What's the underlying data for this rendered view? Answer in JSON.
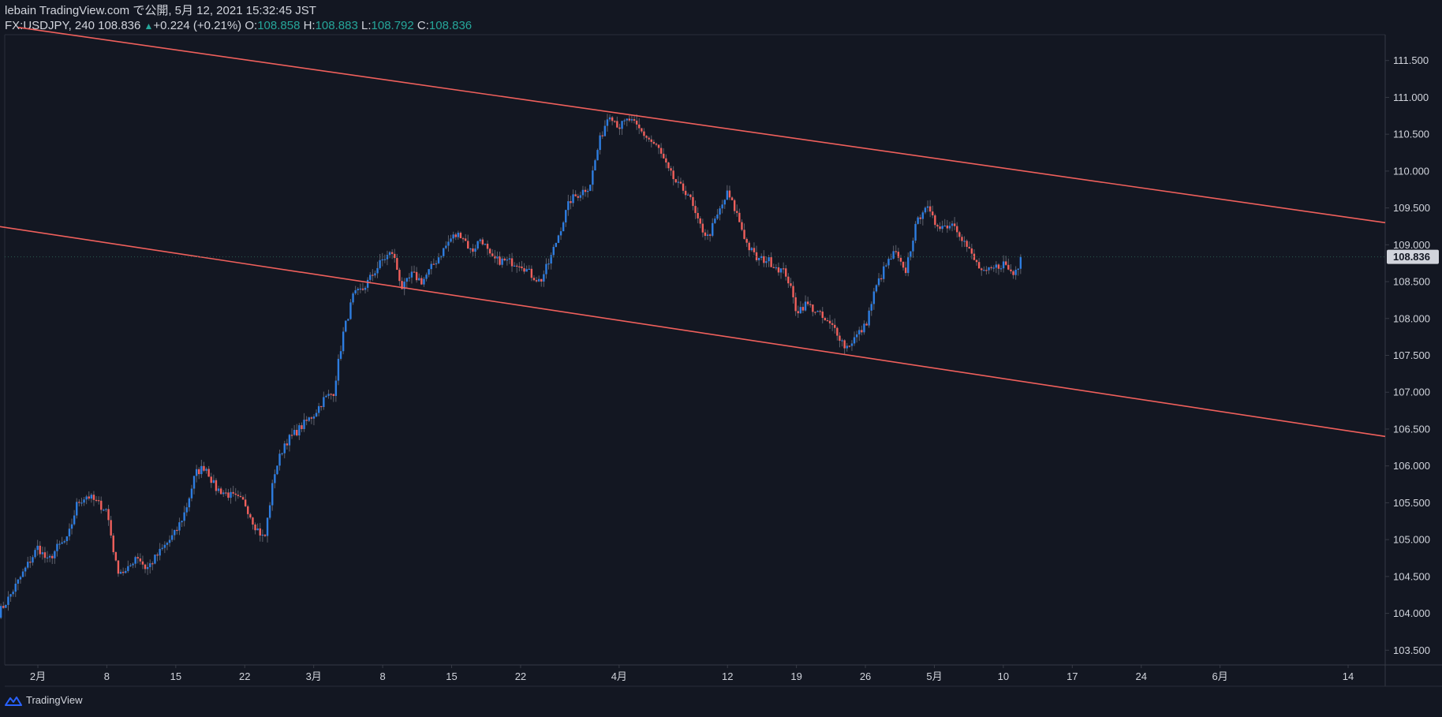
{
  "header": {
    "publish_line": "lebain TradingView.com で公開, 5月 12, 2021 15:32:45 JST",
    "symbol": "FX:USDJPY, 240",
    "last": "108.836",
    "change": "+0.224 (+0.21%)",
    "o_label": "O:",
    "o_value": "108.858",
    "h_label": "H:",
    "h_value": "108.883",
    "l_label": "L:",
    "l_value": "108.792",
    "c_label": "C:",
    "c_value": "108.836"
  },
  "footer": {
    "brand": "TradingView"
  },
  "colors": {
    "background": "#131722",
    "up": "#2e7de0",
    "down": "#f0605c",
    "trendline": "#f0605c",
    "axis_text": "#d1d4dc",
    "price_tag": "#d1d4dc"
  },
  "chart_data": {
    "type": "candlestick",
    "symbol": "FX:USDJPY",
    "interval": "240",
    "ylim": [
      103.3,
      111.85
    ],
    "y_ticks": [
      "111.500",
      "111.000",
      "110.500",
      "110.000",
      "109.500",
      "109.000",
      "108.500",
      "108.000",
      "107.500",
      "107.000",
      "106.500",
      "106.000",
      "105.500",
      "105.000",
      "104.500",
      "104.000",
      "103.500"
    ],
    "current_price": "108.836",
    "x_ticks": [
      {
        "label": "2月",
        "date": "2021-02-01"
      },
      {
        "label": "8",
        "date": "2021-02-08"
      },
      {
        "label": "15",
        "date": "2021-02-15"
      },
      {
        "label": "22",
        "date": "2021-02-22"
      },
      {
        "label": "3月",
        "date": "2021-03-01"
      },
      {
        "label": "8",
        "date": "2021-03-08"
      },
      {
        "label": "15",
        "date": "2021-03-15"
      },
      {
        "label": "22",
        "date": "2021-03-22"
      },
      {
        "label": "4月",
        "date": "2021-04-01"
      },
      {
        "label": "12",
        "date": "2021-04-12"
      },
      {
        "label": "19",
        "date": "2021-04-19"
      },
      {
        "label": "26",
        "date": "2021-04-26"
      },
      {
        "label": "5月",
        "date": "2021-05-03"
      },
      {
        "label": "10",
        "date": "2021-05-10"
      },
      {
        "label": "17",
        "date": "2021-05-17"
      },
      {
        "label": "24",
        "date": "2021-05-24"
      },
      {
        "label": "6月",
        "date": "2021-06-01"
      },
      {
        "label": "14",
        "date": "2021-06-14"
      }
    ],
    "price_path": [
      {
        "date": "2021-01-28",
        "price": 104.0
      },
      {
        "date": "2021-01-29",
        "price": 104.2
      },
      {
        "date": "2021-02-01",
        "price": 104.9
      },
      {
        "date": "2021-02-02",
        "price": 104.7
      },
      {
        "date": "2021-02-03",
        "price": 104.9
      },
      {
        "date": "2021-02-04",
        "price": 105.0
      },
      {
        "date": "2021-02-05",
        "price": 105.5
      },
      {
        "date": "2021-02-06",
        "price": 105.6
      },
      {
        "date": "2021-02-08",
        "price": 105.4
      },
      {
        "date": "2021-02-09",
        "price": 104.6
      },
      {
        "date": "2021-02-10",
        "price": 104.55
      },
      {
        "date": "2021-02-11",
        "price": 104.8
      },
      {
        "date": "2021-02-12",
        "price": 104.6
      },
      {
        "date": "2021-02-15",
        "price": 105.1
      },
      {
        "date": "2021-02-16",
        "price": 105.4
      },
      {
        "date": "2021-02-17",
        "price": 105.9
      },
      {
        "date": "2021-02-18",
        "price": 106.0
      },
      {
        "date": "2021-02-19",
        "price": 105.7
      },
      {
        "date": "2021-02-22",
        "price": 105.5
      },
      {
        "date": "2021-02-23",
        "price": 105.2
      },
      {
        "date": "2021-02-24",
        "price": 105.0
      },
      {
        "date": "2021-02-25",
        "price": 105.9
      },
      {
        "date": "2021-02-26",
        "price": 106.3
      },
      {
        "date": "2021-03-01",
        "price": 106.7
      },
      {
        "date": "2021-03-02",
        "price": 106.9
      },
      {
        "date": "2021-03-03",
        "price": 107.0
      },
      {
        "date": "2021-03-04",
        "price": 107.8
      },
      {
        "date": "2021-03-05",
        "price": 108.3
      },
      {
        "date": "2021-03-06",
        "price": 108.4
      },
      {
        "date": "2021-03-08",
        "price": 108.8
      },
      {
        "date": "2021-03-09",
        "price": 108.9
      },
      {
        "date": "2021-03-10",
        "price": 108.4
      },
      {
        "date": "2021-03-11",
        "price": 108.6
      },
      {
        "date": "2021-03-12",
        "price": 108.5
      },
      {
        "date": "2021-03-15",
        "price": 109.1
      },
      {
        "date": "2021-03-16",
        "price": 109.15
      },
      {
        "date": "2021-03-17",
        "price": 108.9
      },
      {
        "date": "2021-03-18",
        "price": 109.1
      },
      {
        "date": "2021-03-19",
        "price": 108.8
      },
      {
        "date": "2021-03-22",
        "price": 108.75
      },
      {
        "date": "2021-03-23",
        "price": 108.6
      },
      {
        "date": "2021-03-24",
        "price": 108.5
      },
      {
        "date": "2021-03-25",
        "price": 108.8
      },
      {
        "date": "2021-03-26",
        "price": 109.2
      },
      {
        "date": "2021-03-27",
        "price": 109.6
      },
      {
        "date": "2021-03-29",
        "price": 109.8
      },
      {
        "date": "2021-03-30",
        "price": 110.4
      },
      {
        "date": "2021-03-31",
        "price": 110.8
      },
      {
        "date": "2021-04-01",
        "price": 110.6
      },
      {
        "date": "2021-04-02",
        "price": 110.7
      },
      {
        "date": "2021-04-05",
        "price": 110.3
      },
      {
        "date": "2021-04-06",
        "price": 110.0
      },
      {
        "date": "2021-04-07",
        "price": 109.8
      },
      {
        "date": "2021-04-08",
        "price": 109.7
      },
      {
        "date": "2021-04-09",
        "price": 109.3
      },
      {
        "date": "2021-04-10",
        "price": 109.1
      },
      {
        "date": "2021-04-12",
        "price": 109.7
      },
      {
        "date": "2021-04-13",
        "price": 109.4
      },
      {
        "date": "2021-04-14",
        "price": 109.0
      },
      {
        "date": "2021-04-15",
        "price": 108.8
      },
      {
        "date": "2021-04-16",
        "price": 108.8
      },
      {
        "date": "2021-04-18",
        "price": 108.6
      },
      {
        "date": "2021-04-19",
        "price": 108.1
      },
      {
        "date": "2021-04-20",
        "price": 108.2
      },
      {
        "date": "2021-04-21",
        "price": 108.1
      },
      {
        "date": "2021-04-22",
        "price": 107.95
      },
      {
        "date": "2021-04-23",
        "price": 107.85
      },
      {
        "date": "2021-04-24",
        "price": 107.6
      },
      {
        "date": "2021-04-26",
        "price": 107.9
      },
      {
        "date": "2021-04-27",
        "price": 108.4
      },
      {
        "date": "2021-04-28",
        "price": 108.7
      },
      {
        "date": "2021-04-29",
        "price": 108.9
      },
      {
        "date": "2021-04-30",
        "price": 108.6
      },
      {
        "date": "2021-05-01",
        "price": 109.2
      },
      {
        "date": "2021-05-02",
        "price": 109.55
      },
      {
        "date": "2021-05-03",
        "price": 109.3
      },
      {
        "date": "2021-05-04",
        "price": 109.25
      },
      {
        "date": "2021-05-05",
        "price": 109.3
      },
      {
        "date": "2021-05-06",
        "price": 109.05
      },
      {
        "date": "2021-05-07",
        "price": 108.8
      },
      {
        "date": "2021-05-08",
        "price": 108.6
      },
      {
        "date": "2021-05-10",
        "price": 108.75
      },
      {
        "date": "2021-05-11",
        "price": 108.6
      },
      {
        "date": "2021-05-12",
        "price": 108.836
      }
    ],
    "trendlines": [
      {
        "name": "upper",
        "start": {
          "date": "2021-01-30",
          "price": 111.95
        },
        "end": {
          "date": "2021-06-20",
          "price": 109.3
        }
      },
      {
        "name": "lower",
        "start": {
          "date": "2021-01-28",
          "price": 109.25
        },
        "end": {
          "date": "2021-06-20",
          "price": 106.4
        }
      }
    ]
  }
}
